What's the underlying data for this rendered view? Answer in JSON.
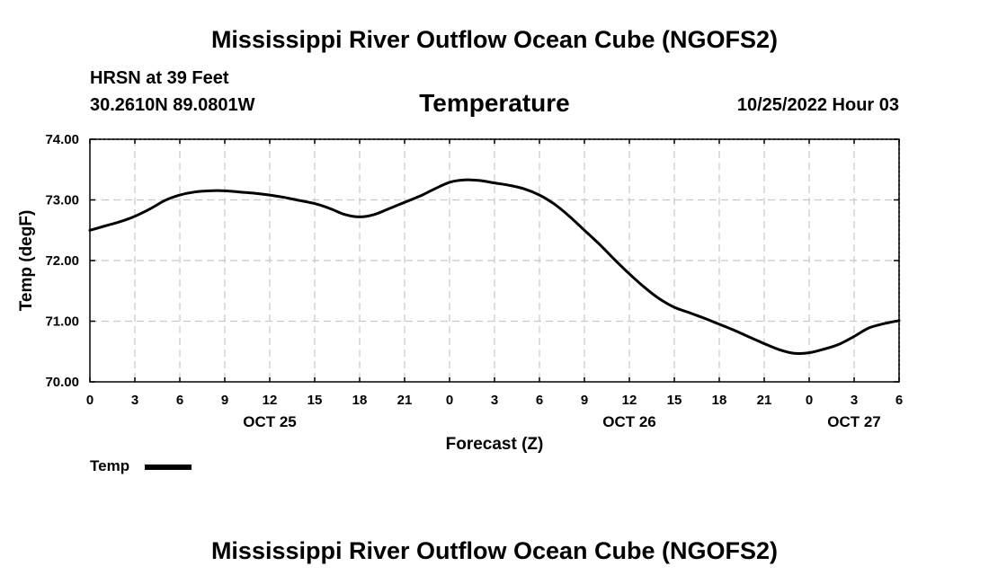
{
  "header": {
    "title": "Mississippi River Outflow Ocean Cube (NGOFS2)",
    "station": "HRSN at 39 Feet",
    "coordinates": "30.2610N  89.0801W",
    "subtitle": "Temperature",
    "datestamp": "10/25/2022 Hour 03"
  },
  "footer": {
    "title": "Mississippi River Outflow Ocean Cube (NGOFS2)"
  },
  "legend": {
    "label": "Temp"
  },
  "colors": {
    "line": "#000000",
    "grid": "#c8c8c8",
    "axis": "#000000"
  },
  "chart_data": {
    "type": "line",
    "title": "Temperature",
    "xlabel": "Forecast (Z)",
    "ylabel": "Temp (degF)",
    "xlim": [
      0,
      54
    ],
    "ylim": [
      70.0,
      74.0
    ],
    "grid": true,
    "legend_position": "bottom-left",
    "x_tick_values": [
      0,
      3,
      6,
      9,
      12,
      15,
      18,
      21,
      24,
      27,
      30,
      33,
      36,
      39,
      42,
      45,
      48,
      51,
      54
    ],
    "x_tick_labels": [
      "0",
      "3",
      "6",
      "9",
      "12",
      "15",
      "18",
      "21",
      "0",
      "3",
      "6",
      "9",
      "12",
      "15",
      "18",
      "21",
      "0",
      "3",
      "6"
    ],
    "y_tick_values": [
      70.0,
      71.0,
      72.0,
      73.0,
      74.0
    ],
    "y_tick_labels": [
      "70.00",
      "71.00",
      "72.00",
      "73.00",
      "74.00"
    ],
    "date_labels": [
      {
        "x": 12,
        "label": "OCT 25"
      },
      {
        "x": 36,
        "label": "OCT 26"
      },
      {
        "x": 51,
        "label": "OCT 27"
      }
    ],
    "series": [
      {
        "name": "Temp",
        "x": [
          0,
          1,
          2,
          3,
          4,
          5,
          6,
          7,
          8,
          9,
          10,
          11,
          12,
          13,
          14,
          15,
          16,
          17,
          18,
          19,
          20,
          21,
          22,
          23,
          24,
          25,
          26,
          27,
          28,
          29,
          30,
          31,
          32,
          33,
          34,
          35,
          36,
          37,
          38,
          39,
          40,
          41,
          42,
          43,
          44,
          45,
          46,
          47,
          48,
          49,
          50,
          51,
          52,
          53,
          54
        ],
        "values": [
          72.5,
          72.57,
          72.64,
          72.73,
          72.85,
          72.99,
          73.08,
          73.13,
          73.15,
          73.15,
          73.13,
          73.11,
          73.08,
          73.04,
          72.99,
          72.94,
          72.86,
          72.76,
          72.72,
          72.76,
          72.86,
          72.96,
          73.06,
          73.18,
          73.29,
          73.33,
          73.32,
          73.28,
          73.24,
          73.18,
          73.08,
          72.93,
          72.73,
          72.5,
          72.27,
          72.02,
          71.78,
          71.56,
          71.37,
          71.23,
          71.14,
          71.05,
          70.95,
          70.85,
          70.74,
          70.63,
          70.53,
          70.47,
          70.48,
          70.54,
          70.62,
          70.75,
          70.89,
          70.96,
          71.01
        ]
      }
    ]
  }
}
